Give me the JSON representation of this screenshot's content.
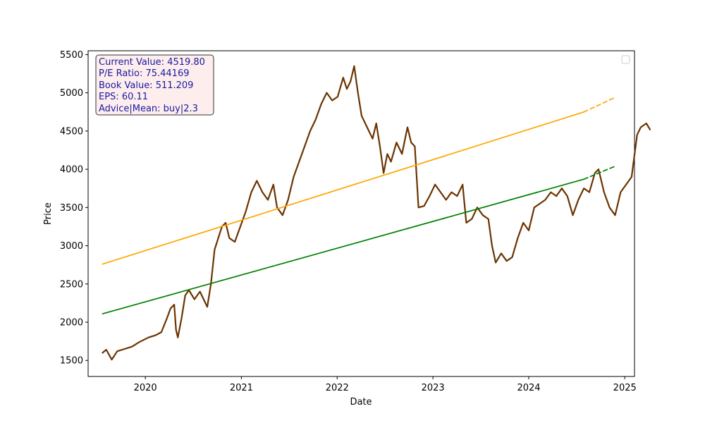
{
  "chart_data": {
    "type": "line",
    "title": "",
    "xlabel": "Date",
    "ylabel": "Price",
    "xlim": [
      "2019-05-28",
      "2025-02-07"
    ],
    "ylim": [
      1290,
      5550
    ],
    "x_ticks": [
      "2020",
      "2021",
      "2022",
      "2023",
      "2024",
      "2025"
    ],
    "y_ticks": [
      1500,
      2000,
      2500,
      3000,
      3500,
      4000,
      4500,
      5000,
      5500
    ],
    "grid": false,
    "legend": {
      "position": "top-right",
      "entries": []
    },
    "info_box": {
      "lines": [
        "Current Value: 4519.80",
        "P/E Ratio: 75.44169",
        "Book Value: 511.209",
        "EPS: 60.11",
        "Advice|Mean: buy|2.3"
      ],
      "text_color": "#1a1aa0",
      "background": "#fde9e9"
    },
    "series": [
      {
        "style": "price",
        "color": "#6b3300",
        "points": [
          [
            "2019-07-22",
            1600
          ],
          [
            "2019-08-05",
            1640
          ],
          [
            "2019-08-26",
            1510
          ],
          [
            "2019-09-16",
            1620
          ],
          [
            "2019-10-14",
            1650
          ],
          [
            "2019-11-11",
            1680
          ],
          [
            "2019-12-09",
            1740
          ],
          [
            "2020-01-13",
            1800
          ],
          [
            "2020-02-10",
            1830
          ],
          [
            "2020-03-02",
            1870
          ],
          [
            "2020-03-23",
            2050
          ],
          [
            "2020-04-06",
            2180
          ],
          [
            "2020-04-20",
            2230
          ],
          [
            "2020-04-27",
            1900
          ],
          [
            "2020-05-04",
            1800
          ],
          [
            "2020-05-18",
            2050
          ],
          [
            "2020-06-01",
            2350
          ],
          [
            "2020-06-15",
            2420
          ],
          [
            "2020-07-06",
            2300
          ],
          [
            "2020-07-27",
            2400
          ],
          [
            "2020-08-10",
            2300
          ],
          [
            "2020-08-24",
            2200
          ],
          [
            "2020-09-07",
            2500
          ],
          [
            "2020-09-21",
            2950
          ],
          [
            "2020-10-05",
            3100
          ],
          [
            "2020-10-19",
            3250
          ],
          [
            "2020-11-02",
            3300
          ],
          [
            "2020-11-16",
            3100
          ],
          [
            "2020-12-07",
            3050
          ],
          [
            "2020-12-28",
            3250
          ],
          [
            "2021-01-18",
            3450
          ],
          [
            "2021-02-08",
            3700
          ],
          [
            "2021-03-01",
            3850
          ],
          [
            "2021-03-22",
            3700
          ],
          [
            "2021-04-12",
            3600
          ],
          [
            "2021-05-03",
            3800
          ],
          [
            "2021-05-17",
            3500
          ],
          [
            "2021-06-07",
            3400
          ],
          [
            "2021-06-28",
            3600
          ],
          [
            "2021-07-19",
            3900
          ],
          [
            "2021-08-09",
            4100
          ],
          [
            "2021-08-30",
            4300
          ],
          [
            "2021-09-20",
            4500
          ],
          [
            "2021-10-11",
            4650
          ],
          [
            "2021-11-01",
            4850
          ],
          [
            "2021-11-22",
            5000
          ],
          [
            "2021-12-13",
            4900
          ],
          [
            "2022-01-03",
            4950
          ],
          [
            "2022-01-24",
            5200
          ],
          [
            "2022-02-07",
            5050
          ],
          [
            "2022-02-21",
            5150
          ],
          [
            "2022-03-07",
            5350
          ],
          [
            "2022-03-21",
            5000
          ],
          [
            "2022-04-04",
            4700
          ],
          [
            "2022-04-25",
            4550
          ],
          [
            "2022-05-16",
            4400
          ],
          [
            "2022-05-30",
            4600
          ],
          [
            "2022-06-13",
            4300
          ],
          [
            "2022-06-27",
            3950
          ],
          [
            "2022-07-11",
            4200
          ],
          [
            "2022-07-25",
            4100
          ],
          [
            "2022-08-15",
            4350
          ],
          [
            "2022-09-05",
            4200
          ],
          [
            "2022-09-26",
            4550
          ],
          [
            "2022-10-10",
            4350
          ],
          [
            "2022-10-24",
            4300
          ],
          [
            "2022-11-07",
            3500
          ],
          [
            "2022-11-28",
            3520
          ],
          [
            "2022-12-19",
            3650
          ],
          [
            "2023-01-09",
            3800
          ],
          [
            "2023-01-30",
            3700
          ],
          [
            "2023-02-20",
            3600
          ],
          [
            "2023-03-13",
            3700
          ],
          [
            "2023-04-03",
            3650
          ],
          [
            "2023-04-24",
            3800
          ],
          [
            "2023-05-08",
            3300
          ],
          [
            "2023-05-29",
            3350
          ],
          [
            "2023-06-19",
            3500
          ],
          [
            "2023-07-10",
            3400
          ],
          [
            "2023-07-31",
            3350
          ],
          [
            "2023-08-14",
            3000
          ],
          [
            "2023-08-28",
            2780
          ],
          [
            "2023-09-18",
            2900
          ],
          [
            "2023-10-09",
            2800
          ],
          [
            "2023-10-30",
            2850
          ],
          [
            "2023-11-20",
            3100
          ],
          [
            "2023-12-11",
            3300
          ],
          [
            "2024-01-01",
            3200
          ],
          [
            "2024-01-22",
            3500
          ],
          [
            "2024-02-12",
            3550
          ],
          [
            "2024-03-04",
            3600
          ],
          [
            "2024-03-25",
            3700
          ],
          [
            "2024-04-15",
            3650
          ],
          [
            "2024-05-06",
            3750
          ],
          [
            "2024-05-27",
            3650
          ],
          [
            "2024-06-17",
            3400
          ],
          [
            "2024-07-08",
            3600
          ],
          [
            "2024-07-29",
            3750
          ],
          [
            "2024-08-19",
            3700
          ],
          [
            "2024-09-09",
            3950
          ],
          [
            "2024-09-23",
            4000
          ],
          [
            "2024-10-14",
            3700
          ],
          [
            "2024-11-04",
            3500
          ],
          [
            "2024-11-25",
            3400
          ],
          [
            "2024-12-16",
            3700
          ],
          [
            "2025-01-06",
            3800
          ],
          [
            "2025-01-27",
            3900
          ],
          [
            "2025-02-17",
            4450
          ],
          [
            "2025-03-03",
            4550
          ],
          [
            "2025-03-24",
            4600
          ],
          [
            "2025-04-07",
            4520
          ]
        ]
      },
      {
        "style": "trend",
        "color": "#ffa500",
        "points": [
          [
            "2019-07-22",
            2760
          ],
          [
            "2024-07-29",
            4750
          ]
        ]
      },
      {
        "style": "trend-forecast",
        "color": "#ffa500",
        "points": [
          [
            "2024-07-29",
            4750
          ],
          [
            "2024-11-25",
            4940
          ]
        ]
      },
      {
        "style": "trend",
        "color": "#008000",
        "points": [
          [
            "2019-07-22",
            2110
          ],
          [
            "2024-07-29",
            3870
          ]
        ]
      },
      {
        "style": "trend-forecast",
        "color": "#008000",
        "points": [
          [
            "2024-07-29",
            3870
          ],
          [
            "2024-11-25",
            4040
          ]
        ]
      }
    ]
  }
}
